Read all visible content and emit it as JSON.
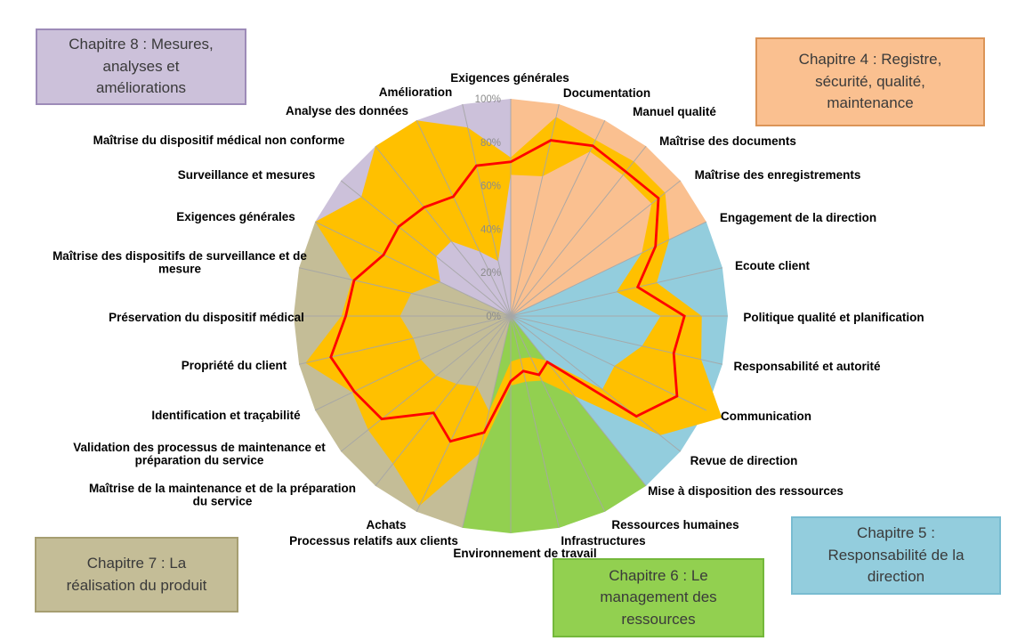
{
  "chart_data": {
    "type": "radar",
    "axes_count": 28,
    "rmax_percent": 100,
    "grid": "spokes-only",
    "radial_tick_labels": [
      "0%",
      "20%",
      "40%",
      "60%",
      "80%",
      "100%"
    ],
    "axes": [
      "Exigences générales",
      "Documentation",
      "Manuel qualité",
      "Maîtrise des documents",
      "Maîtrise des enregistrements",
      "Engagement de la direction",
      "Ecoute client",
      "Politique qualité et planification",
      "Responsabilité et autorité",
      "Communication",
      "Revue de direction",
      "Mise à disposition des ressources",
      "Ressources humaines",
      "Infrastructures",
      "Environnement de travail",
      "Processus relatifs aux clients",
      "Achats",
      "Maîtrise de la maintenance et de la préparation\ndu service",
      "Validation des processus de maintenance et\npréparation du service",
      "Identification et traçabilité",
      "Propriété du client",
      "Préservation du dispositif médical",
      "Maîtrise des dispositifs de surveillance et de\nmesure",
      "Exigences générales",
      "Surveillance et mesures",
      "Maîtrise du dispositif médical non conforme",
      "Analyse des données",
      "Amélioration"
    ],
    "series": [
      {
        "name": "yellow-band-outer",
        "type": "band-outer",
        "color": "#FFC000",
        "values": [
          73,
          94,
          90,
          91,
          91,
          81,
          69,
          88,
          90,
          108,
          88,
          47,
          33,
          31,
          32,
          65,
          97,
          87,
          84,
          81,
          97,
          78,
          75,
          100,
          88,
          100,
          100,
          89
        ]
      },
      {
        "name": "yellow-band-inner",
        "type": "band-inner",
        "color": "#FFC000",
        "values": [
          65,
          66,
          84,
          83,
          83,
          67,
          50,
          69,
          62,
          53,
          54,
          26,
          21,
          20,
          21,
          45,
          36,
          40,
          44,
          46,
          46,
          51,
          47,
          36,
          44,
          44,
          33,
          26
        ]
      },
      {
        "name": "red-score-line",
        "type": "line",
        "color": "#FF0000",
        "values": [
          71,
          83,
          87,
          85,
          87,
          74,
          60,
          80,
          77,
          85,
          74,
          27,
          30,
          26,
          30,
          55,
          64,
          57,
          76,
          80,
          85,
          76,
          74,
          65,
          66,
          64,
          61,
          71
        ]
      }
    ],
    "chapter_sectors": [
      {
        "chapter": "Chapitre 4",
        "color": "#FAC090",
        "axis_range": [
          0,
          5
        ]
      },
      {
        "chapter": "Chapitre 5",
        "color": "#93CDDD",
        "axis_range": [
          5,
          11
        ]
      },
      {
        "chapter": "Chapitre 6",
        "color": "#92D050",
        "axis_range": [
          11,
          15
        ]
      },
      {
        "chapter": "Chapitre 7",
        "color": "#C4BD97",
        "axis_range": [
          15,
          23
        ]
      },
      {
        "chapter": "Chapitre 8",
        "color": "#CCC1DA",
        "axis_range": [
          23,
          28
        ]
      }
    ],
    "legend_position": "corner text boxes",
    "spoke_color": "#A6A6A6",
    "tick_label_color": "#8B8B8B"
  },
  "legend_boxes": {
    "ch8": {
      "text": "Chapitre 8 : Mesures,\nanalyses et\naméliorations",
      "bg": "#CCC1DA",
      "border": "#9D8BB8"
    },
    "ch4": {
      "text": "Chapitre 4 : Registre,\nsécurité, qualité,\nmaintenance",
      "bg": "#FAC090",
      "border": "#DB9457"
    },
    "ch5": {
      "text": "Chapitre 5 :\nResponsabilité de la\ndirection",
      "bg": "#93CDDD",
      "border": "#79BCD1"
    },
    "ch6": {
      "text": "Chapitre 6 : Le\nmanagement des\nressources",
      "bg": "#92D050",
      "border": "#74B83B"
    },
    "ch7": {
      "text": "Chapitre 7 : La\nréalisation du produit",
      "bg": "#C4BD97",
      "border": "#A69E71"
    }
  }
}
